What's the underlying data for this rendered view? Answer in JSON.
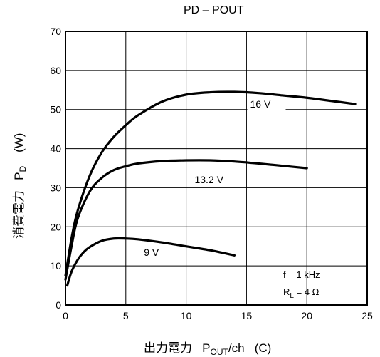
{
  "chart_data": {
    "type": "line",
    "title": "PD – POUT",
    "xlabel": {
      "prefix": "出力電力",
      "symbol": "P",
      "subscript": "OUT",
      "suffix": "/ch",
      "unit": "(C)"
    },
    "ylabel": {
      "prefix": "消費電力",
      "symbol": "P",
      "subscript": "D",
      "unit": "(W)"
    },
    "xlim": [
      0,
      25
    ],
    "ylim": [
      0,
      70
    ],
    "xticks": [
      0,
      5,
      10,
      15,
      20,
      25
    ],
    "yticks": [
      0,
      10,
      20,
      30,
      40,
      50,
      60,
      70
    ],
    "grid": true,
    "series": [
      {
        "name": "16 V",
        "x": [
          0,
          0.5,
          1,
          2,
          3,
          4,
          5,
          6,
          8,
          10,
          12,
          14,
          16,
          18,
          20,
          22,
          24
        ],
        "y": [
          7.5,
          17,
          24,
          33,
          39,
          43,
          46,
          48.5,
          52,
          53.8,
          54.4,
          54.5,
          54.2,
          53.6,
          53,
          52.2,
          51.4
        ]
      },
      {
        "name": "13.2 V",
        "x": [
          0,
          0.5,
          1,
          2,
          3,
          4,
          5,
          6,
          8,
          10,
          12,
          14,
          16,
          18,
          20
        ],
        "y": [
          6.5,
          15,
          22,
          29,
          32.5,
          34.5,
          35.5,
          36.2,
          36.8,
          37,
          37,
          36.7,
          36.2,
          35.6,
          35
        ]
      },
      {
        "name": "9 V",
        "x": [
          0.15,
          0.5,
          1,
          1.5,
          2,
          3,
          4,
          5,
          6,
          8,
          10,
          12,
          14
        ],
        "y": [
          5,
          8.5,
          11.5,
          13.5,
          14.8,
          16.4,
          17,
          17,
          16.8,
          16,
          15,
          14,
          12.7
        ]
      }
    ],
    "annotations": [
      {
        "label": "f = 1 kHz"
      },
      {
        "label_prefix": "R",
        "label_sub": "L",
        "label_suffix": " = 4 Ω"
      }
    ]
  }
}
